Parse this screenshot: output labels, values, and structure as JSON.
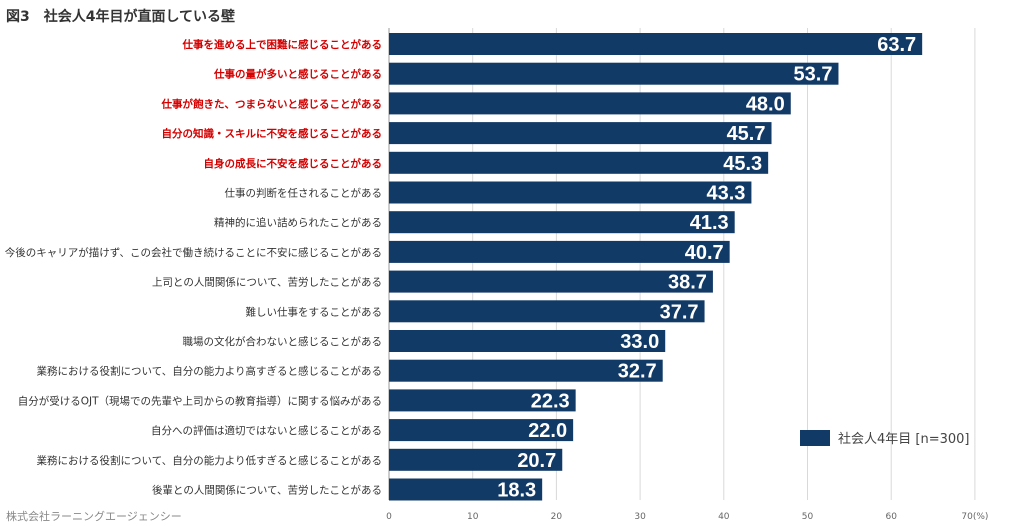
{
  "header": {
    "title": "図3　社会人4年目が直面している壁"
  },
  "footer": {
    "source": "株式会社ラーニングエージェンシー"
  },
  "colors": {
    "bar": "#123a66",
    "highlight_text": "#d40000",
    "normal_text": "#333333",
    "value_text": "#ffffff",
    "grid": "#d9d9d9"
  },
  "chart_data": {
    "type": "bar",
    "orientation": "horizontal",
    "title": "図3　社会人4年目が直面している壁",
    "categories": [
      "仕事を進める上で困難に感じることがある",
      "仕事の量が多いと感じることがある",
      "仕事が飽きた、つまらないと感じることがある",
      "自分の知識・スキルに不安を感じることがある",
      "自身の成長に不安を感じることがある",
      "仕事の判断を任されることがある",
      "精神的に追い詰められたことがある",
      "今後のキャリアが描けず、この会社で働き続けることに不安に感じることがある",
      "上司との人間関係について、苦労したことがある",
      "難しい仕事をすることがある",
      "職場の文化が合わないと感じることがある",
      "業務における役割について、自分の能力より高すぎると感じることがある",
      "自分が受けるOJT（現場での先輩や上司からの教育指導）に関する悩みがある",
      "自分への評価は適切ではないと感じることがある",
      "業務における役割について、自分の能力より低すぎると感じることがある",
      "後輩との人間関係について、苦労したことがある"
    ],
    "highlighted": [
      true,
      true,
      true,
      true,
      true,
      false,
      false,
      false,
      false,
      false,
      false,
      false,
      false,
      false,
      false,
      false
    ],
    "series": [
      {
        "name": "社会人4年目 [n=300]",
        "values": [
          63.7,
          53.7,
          48.0,
          45.7,
          45.3,
          43.3,
          41.3,
          40.7,
          38.7,
          37.7,
          33.0,
          32.7,
          22.3,
          22.0,
          20.7,
          18.3
        ],
        "value_labels": [
          "63.7",
          "53.7",
          "48.0",
          "45.7",
          "45.3",
          "43.3",
          "41.3",
          "40.7",
          "38.7",
          "37.7",
          "33.0",
          "32.7",
          "22.3",
          "22.0",
          "20.7",
          "18.3"
        ]
      }
    ],
    "xlim": [
      0,
      70
    ],
    "x_ticks": [
      "0",
      "10",
      "20",
      "30",
      "40",
      "50",
      "60",
      "70(%)"
    ],
    "grid": true,
    "legend": {
      "label": "社会人4年目 [n=300]",
      "position": "bottom-right"
    }
  }
}
